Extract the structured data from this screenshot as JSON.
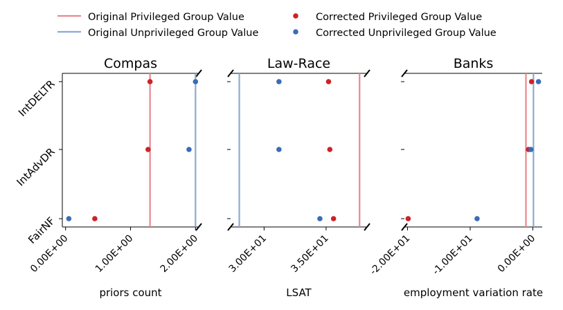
{
  "legend": {
    "orig_priv": "Original Privileged Group Value",
    "orig_unpriv": "Original Unprivileged Group Value",
    "corr_priv": "Corrected Privileged Group Value",
    "corr_unpriv": "Corrected Unprivileged Group Value"
  },
  "colors": {
    "priv_line": "#e8888f",
    "unpriv_line": "#8ea8d2",
    "priv_dot": "#cc2229",
    "unpriv_dot": "#3b6cb5"
  },
  "chart_data": [
    {
      "type": "scatter",
      "title": "Compas",
      "xlabel": "priors count",
      "categories": [
        "IntDELTR",
        "IntAdvDR",
        "FairNF"
      ],
      "xlim": [
        -0.05,
        2.05
      ],
      "xticks": [
        0.0,
        1.0,
        2.0
      ],
      "xtick_labels": [
        "0.00E+00",
        "1.00E+00",
        "2.00E+00"
      ],
      "original_privileged": 1.3,
      "original_unprivileged": 2.0,
      "series": [
        {
          "name": "Corrected Privileged Group Value",
          "values": [
            1.3,
            1.27,
            0.45
          ]
        },
        {
          "name": "Corrected Unprivileged Group Value",
          "values": [
            2.0,
            1.9,
            0.05
          ]
        }
      ]
    },
    {
      "type": "scatter",
      "title": "Law-Race",
      "xlabel": "LSAT",
      "categories": [
        "IntDELTR",
        "IntAdvDR",
        "FairNF"
      ],
      "xlim": [
        27.3,
        38.3
      ],
      "xticks": [
        30,
        35
      ],
      "xtick_labels": [
        "3.00E+01",
        "3.50E+01"
      ],
      "original_privileged": 37.7,
      "original_unprivileged": 28.0,
      "series": [
        {
          "name": "Corrected Privileged Group Value",
          "values": [
            35.2,
            35.3,
            35.6
          ]
        },
        {
          "name": "Corrected Unprivileged Group Value",
          "values": [
            31.2,
            31.2,
            34.5
          ]
        }
      ]
    },
    {
      "type": "scatter",
      "title": "Banks",
      "xlabel": "employment variation rate",
      "categories": [
        "IntDELTR",
        "IntAdvDR",
        "FairNF"
      ],
      "xlim": [
        -20.5,
        1.5
      ],
      "xticks": [
        -20,
        -10,
        0
      ],
      "xtick_labels": [
        "-2.00E+01",
        "-1.00E+01",
        "0.00E+00"
      ],
      "original_privileged": -1.1,
      "original_unprivileged": 0.1,
      "series": [
        {
          "name": "Corrected Privileged Group Value",
          "values": [
            -0.2,
            -0.7,
            -19.9
          ]
        },
        {
          "name": "Corrected Unprivileged Group Value",
          "values": [
            0.9,
            -0.3,
            -8.9
          ]
        }
      ]
    }
  ]
}
